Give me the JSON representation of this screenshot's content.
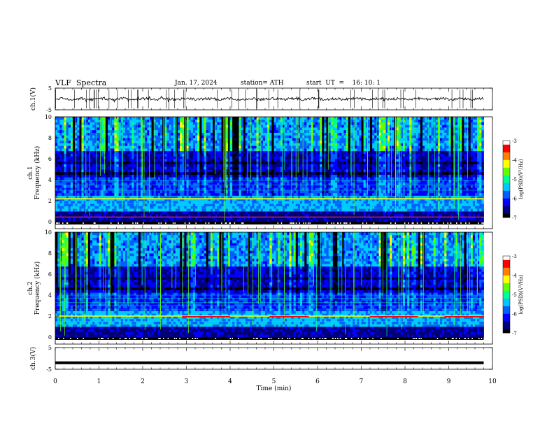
{
  "header": {
    "title": "VLF  Spectra",
    "date": "Jan. 17, 2024",
    "station": "station= ATH",
    "start_ut": "start  UT  =    16: 10: 1"
  },
  "chart_data": [
    {
      "type": "line",
      "id": "ch1-waveform",
      "ylabel": "ch.1(V)",
      "ylim": [
        -5,
        5
      ],
      "yticks": [
        "5",
        "-5"
      ],
      "xlim": [
        0,
        10
      ],
      "series": [
        {
          "values_summary": "noisy trace near 0 V with spikes to about ±1.5 V",
          "color": "#000000"
        }
      ]
    },
    {
      "type": "heatmap",
      "id": "ch1-spectrogram",
      "ylabel": "ch.1\nFrequency  (kHz)",
      "ylim": [
        0,
        10
      ],
      "yticks": [
        "0",
        "2",
        "4",
        "6",
        "8",
        "10"
      ],
      "xlim": [
        0,
        9.8
      ],
      "colorbar": {
        "label": "log(PSD)(V²/Hz)",
        "range": [
          -7,
          -3
        ],
        "ticks": [
          "-3",
          "-4",
          "-5",
          "-6",
          "-7"
        ]
      }
    },
    {
      "type": "heatmap",
      "id": "ch2-spectrogram",
      "ylabel": "ch.2\nFrequency  (kHz)",
      "ylim": [
        0,
        10
      ],
      "yticks": [
        "0",
        "2",
        "4",
        "6",
        "8",
        "10"
      ],
      "xlim": [
        0,
        9.8
      ],
      "colorbar": {
        "label": "log(PSD)(V²/Hz)",
        "range": [
          -7,
          -3
        ],
        "ticks": [
          "-3",
          "-4",
          "-5",
          "-6",
          "-7"
        ]
      }
    },
    {
      "type": "line",
      "id": "ch3-waveform",
      "ylabel": "ch.3(V)",
      "ylim": [
        -5,
        5
      ],
      "yticks": [
        "5",
        "-5"
      ],
      "xlim": [
        0,
        10
      ],
      "series": [
        {
          "values_summary": "flat thick trace at about -2 V",
          "value": -2,
          "color": "#000000"
        }
      ]
    }
  ],
  "x_axis": {
    "label": "Time  (min)",
    "range": [
      0,
      10
    ],
    "ticks": [
      "0",
      "1",
      "2",
      "3",
      "4",
      "5",
      "6",
      "7",
      "8",
      "9",
      "10"
    ]
  },
  "colormap": [
    "#000000",
    "#00007a",
    "#0000ff",
    "#0060ff",
    "#00c8ff",
    "#00ff90",
    "#60ff00",
    "#ffff00",
    "#ff8000",
    "#ff0000",
    "#ffffff"
  ]
}
